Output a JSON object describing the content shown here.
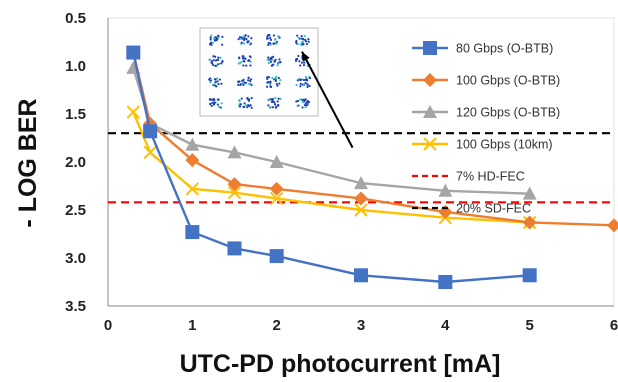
{
  "chart_data": {
    "type": "line",
    "xlabel": "UTC-PD photocurrent [mA]",
    "ylabel": "- LOG BER",
    "xlim": [
      0,
      6
    ],
    "ylim": [
      0.5,
      3.5
    ],
    "y_inverted": true,
    "grid": false,
    "legend_position": "right",
    "x_ticks": [
      "0",
      "1",
      "2",
      "3",
      "4",
      "5",
      "6"
    ],
    "y_ticks": [
      "0.5",
      "1.0",
      "1.5",
      "2.0",
      "2.5",
      "3.0",
      "3.5"
    ],
    "series": [
      {
        "name": "80 Gbps (O-BTB)",
        "color": "#4472C4",
        "marker": "square",
        "points": [
          [
            0.3,
            0.86
          ],
          [
            0.5,
            1.68
          ],
          [
            1,
            2.73
          ],
          [
            1.5,
            2.9
          ],
          [
            2,
            2.98
          ],
          [
            3,
            3.18
          ],
          [
            4,
            3.25
          ],
          [
            5,
            3.18
          ]
        ]
      },
      {
        "name": "100 Gbps (O-BTB)",
        "color": "#ED7D31",
        "marker": "diamond",
        "points": [
          [
            0.3,
            0.86
          ],
          [
            0.5,
            1.6
          ],
          [
            1,
            1.98
          ],
          [
            1.5,
            2.23
          ],
          [
            2,
            2.28
          ],
          [
            3,
            2.38
          ],
          [
            4,
            2.52
          ],
          [
            5,
            2.63
          ],
          [
            6,
            2.66
          ]
        ]
      },
      {
        "name": "120 Gbps (O-BTB)",
        "color": "#A5A5A5",
        "marker": "triangle",
        "points": [
          [
            0.3,
            1.02
          ],
          [
            0.5,
            1.6
          ],
          [
            1,
            1.82
          ],
          [
            1.5,
            1.9
          ],
          [
            2,
            2.0
          ],
          [
            3,
            2.22
          ],
          [
            4,
            2.3
          ],
          [
            5,
            2.33
          ]
        ]
      },
      {
        "name": "100 Gbps (10km)",
        "color": "#FFC000",
        "marker": "x",
        "points": [
          [
            0.3,
            1.48
          ],
          [
            0.5,
            1.9
          ],
          [
            1,
            2.28
          ],
          [
            1.5,
            2.32
          ],
          [
            2,
            2.38
          ],
          [
            3,
            2.5
          ],
          [
            4,
            2.58
          ],
          [
            5,
            2.63
          ]
        ]
      }
    ],
    "reference_lines": [
      {
        "name": "7% HD-FEC",
        "y": 2.42,
        "color": "#FF0000"
      },
      {
        "name": "20% SD-FEC",
        "y": 1.7,
        "color": "#000000"
      }
    ],
    "annotations": [
      {
        "type": "inset-constellation",
        "description": "16-QAM constellation",
        "arrow_from": [
          2.9,
          1.85
        ],
        "arrow_to": [
          2.3,
          0.85
        ]
      }
    ]
  }
}
